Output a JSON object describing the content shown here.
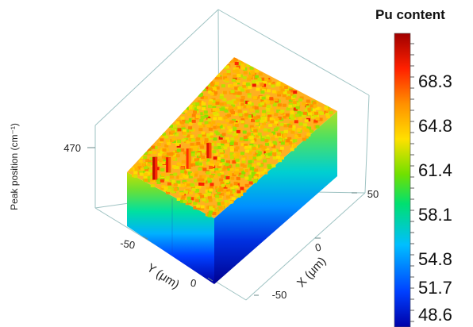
{
  "chart_data": {
    "type": "surface3d",
    "zlabel": "Peak position (cm⁻¹)",
    "ztick": "470",
    "xlabel": "X (μm)",
    "ylabel": "Y (μm)",
    "x_ticks": [
      "-50",
      "0",
      "50"
    ],
    "y_ticks": [
      "-50",
      "0"
    ],
    "colorbar": {
      "title": "Pu content",
      "ticks": [
        "68.3",
        "64.8",
        "61.4",
        "58.1",
        "54.8",
        "51.7",
        "48.6"
      ],
      "range": [
        47.0,
        71.5
      ],
      "colors": [
        "#0000a8",
        "#0040ff",
        "#00bfff",
        "#00e070",
        "#70e000",
        "#ffe000",
        "#ff9000",
        "#ff2000",
        "#a00000"
      ]
    },
    "peaks": [
      {
        "x": -35,
        "y": -55,
        "height": 18,
        "value": 70.5
      },
      {
        "x": -28,
        "y": -45,
        "height": 12,
        "value": 69.0
      },
      {
        "x": -10,
        "y": -35,
        "height": 16,
        "value": 68.0
      },
      {
        "x": 0,
        "y": -20,
        "height": 12,
        "value": 69.5
      }
    ]
  }
}
